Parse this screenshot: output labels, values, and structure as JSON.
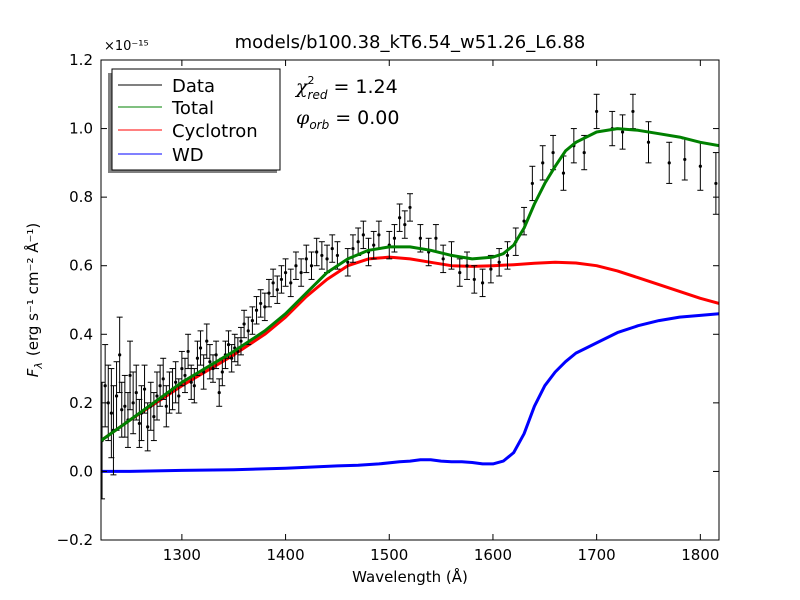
{
  "chart_data": {
    "type": "line",
    "title": "models/b100.38_kT6.54_w51.26_L6.88",
    "xlabel_text": "Wavelength (",
    "xlabel_unit": "Å",
    "xlabel_close": ")",
    "ylabel_symbol": "F",
    "ylabel_sub": "λ",
    "ylabel_units": "(erg s⁻¹ cm⁻² Å⁻¹)",
    "y_offset_label": "×10⁻¹⁵",
    "xlim": [
      1222,
      1818
    ],
    "ylim": [
      -0.2,
      1.2
    ],
    "grid": false,
    "legend_position": "top-left",
    "x_ticks": [
      1300,
      1400,
      1500,
      1600,
      1700,
      1800
    ],
    "x_tick_labels": [
      "1300",
      "1400",
      "1500",
      "1600",
      "1700",
      "1800"
    ],
    "y_ticks": [
      -0.2,
      0.0,
      0.2,
      0.4,
      0.6,
      0.8,
      1.0,
      1.2
    ],
    "y_tick_labels": [
      "−0.2",
      "0.0",
      "0.2",
      "0.4",
      "0.6",
      "0.8",
      "1.0",
      "1.2"
    ],
    "annotations": [
      {
        "symbol": "χ",
        "sup": "2",
        "sub": "red",
        "value": "= 1.24"
      },
      {
        "symbol": "φ",
        "sup": "",
        "sub": "orb",
        "value": "= 0.00"
      }
    ],
    "series": [
      {
        "name": "Data",
        "color": "#000000",
        "kind": "errorbar",
        "points": [
          [
            1223,
            0.09,
            0.17
          ],
          [
            1226,
            0.25,
            0.12
          ],
          [
            1229,
            0.2,
            0.11
          ],
          [
            1232,
            0.17,
            0.13
          ],
          [
            1234,
            0.12,
            0.13
          ],
          [
            1237,
            0.22,
            0.1
          ],
          [
            1240,
            0.34,
            0.11
          ],
          [
            1242,
            0.18,
            0.08
          ],
          [
            1245,
            0.19,
            0.09
          ],
          [
            1248,
            0.15,
            0.08
          ],
          [
            1250,
            0.28,
            0.1
          ],
          [
            1253,
            0.2,
            0.09
          ],
          [
            1256,
            0.23,
            0.08
          ],
          [
            1259,
            0.14,
            0.07
          ],
          [
            1261,
            0.17,
            0.08
          ],
          [
            1264,
            0.24,
            0.07
          ],
          [
            1267,
            0.13,
            0.07
          ],
          [
            1270,
            0.19,
            0.07
          ],
          [
            1273,
            0.16,
            0.07
          ],
          [
            1276,
            0.22,
            0.07
          ],
          [
            1279,
            0.25,
            0.06
          ],
          [
            1282,
            0.27,
            0.06
          ],
          [
            1285,
            0.19,
            0.06
          ],
          [
            1288,
            0.23,
            0.06
          ],
          [
            1291,
            0.24,
            0.06
          ],
          [
            1294,
            0.26,
            0.06
          ],
          [
            1297,
            0.22,
            0.05
          ],
          [
            1300,
            0.3,
            0.05
          ],
          [
            1303,
            0.28,
            0.05
          ],
          [
            1306,
            0.35,
            0.05
          ],
          [
            1309,
            0.26,
            0.05
          ],
          [
            1312,
            0.25,
            0.05
          ],
          [
            1315,
            0.33,
            0.05
          ],
          [
            1318,
            0.36,
            0.05
          ],
          [
            1321,
            0.29,
            0.05
          ],
          [
            1324,
            0.38,
            0.05
          ],
          [
            1327,
            0.32,
            0.05
          ],
          [
            1330,
            0.3,
            0.04
          ],
          [
            1333,
            0.34,
            0.04
          ],
          [
            1336,
            0.23,
            0.04
          ],
          [
            1339,
            0.29,
            0.04
          ],
          [
            1342,
            0.34,
            0.04
          ],
          [
            1345,
            0.37,
            0.04
          ],
          [
            1348,
            0.33,
            0.04
          ],
          [
            1351,
            0.36,
            0.04
          ],
          [
            1354,
            0.35,
            0.04
          ],
          [
            1357,
            0.38,
            0.04
          ],
          [
            1360,
            0.43,
            0.04
          ],
          [
            1364,
            0.41,
            0.04
          ],
          [
            1368,
            0.44,
            0.04
          ],
          [
            1372,
            0.47,
            0.04
          ],
          [
            1376,
            0.49,
            0.04
          ],
          [
            1380,
            0.48,
            0.04
          ],
          [
            1384,
            0.52,
            0.04
          ],
          [
            1388,
            0.55,
            0.04
          ],
          [
            1392,
            0.53,
            0.04
          ],
          [
            1396,
            0.56,
            0.04
          ],
          [
            1400,
            0.58,
            0.04
          ],
          [
            1405,
            0.55,
            0.04
          ],
          [
            1410,
            0.6,
            0.04
          ],
          [
            1415,
            0.58,
            0.04
          ],
          [
            1420,
            0.62,
            0.04
          ],
          [
            1425,
            0.6,
            0.04
          ],
          [
            1430,
            0.64,
            0.04
          ],
          [
            1435,
            0.63,
            0.04
          ],
          [
            1440,
            0.62,
            0.04
          ],
          [
            1445,
            0.65,
            0.04
          ],
          [
            1450,
            0.63,
            0.04
          ],
          [
            1460,
            0.61,
            0.04
          ],
          [
            1465,
            0.65,
            0.04
          ],
          [
            1470,
            0.67,
            0.04
          ],
          [
            1475,
            0.69,
            0.04
          ],
          [
            1480,
            0.64,
            0.04
          ],
          [
            1485,
            0.66,
            0.04
          ],
          [
            1490,
            0.69,
            0.04
          ],
          [
            1500,
            0.66,
            0.04
          ],
          [
            1505,
            0.68,
            0.04
          ],
          [
            1510,
            0.74,
            0.04
          ],
          [
            1515,
            0.72,
            0.04
          ],
          [
            1520,
            0.77,
            0.04
          ],
          [
            1530,
            0.68,
            0.04
          ],
          [
            1538,
            0.64,
            0.04
          ],
          [
            1545,
            0.68,
            0.04
          ],
          [
            1552,
            0.62,
            0.04
          ],
          [
            1560,
            0.63,
            0.04
          ],
          [
            1568,
            0.58,
            0.04
          ],
          [
            1575,
            0.6,
            0.04
          ],
          [
            1582,
            0.56,
            0.04
          ],
          [
            1590,
            0.55,
            0.04
          ],
          [
            1598,
            0.59,
            0.04
          ],
          [
            1606,
            0.61,
            0.04
          ],
          [
            1614,
            0.63,
            0.04
          ],
          [
            1622,
            0.67,
            0.04
          ],
          [
            1630,
            0.73,
            0.04
          ],
          [
            1638,
            0.84,
            0.05
          ],
          [
            1648,
            0.9,
            0.05
          ],
          [
            1658,
            0.93,
            0.05
          ],
          [
            1668,
            0.87,
            0.05
          ],
          [
            1678,
            0.95,
            0.05
          ],
          [
            1688,
            0.93,
            0.05
          ],
          [
            1700,
            1.05,
            0.05
          ],
          [
            1715,
            1.0,
            0.05
          ],
          [
            1725,
            0.99,
            0.05
          ],
          [
            1735,
            1.05,
            0.05
          ],
          [
            1750,
            0.96,
            0.06
          ],
          [
            1770,
            0.9,
            0.06
          ],
          [
            1785,
            0.91,
            0.06
          ],
          [
            1800,
            0.89,
            0.07
          ],
          [
            1815,
            0.84,
            0.09
          ]
        ]
      },
      {
        "name": "Total",
        "color": "#008000",
        "kind": "line",
        "x": [
          1222,
          1250,
          1300,
          1350,
          1380,
          1400,
          1420,
          1440,
          1460,
          1480,
          1500,
          1520,
          1540,
          1560,
          1580,
          1600,
          1610,
          1620,
          1630,
          1640,
          1650,
          1660,
          1670,
          1680,
          1700,
          1720,
          1740,
          1760,
          1780,
          1800,
          1818
        ],
        "y": [
          0.09,
          0.15,
          0.26,
          0.35,
          0.41,
          0.46,
          0.52,
          0.58,
          0.62,
          0.645,
          0.655,
          0.655,
          0.645,
          0.63,
          0.62,
          0.625,
          0.635,
          0.66,
          0.71,
          0.78,
          0.84,
          0.89,
          0.935,
          0.96,
          0.99,
          1.0,
          0.995,
          0.985,
          0.975,
          0.96,
          0.95
        ]
      },
      {
        "name": "Cyclotron",
        "color": "#ff0000",
        "kind": "line",
        "x": [
          1222,
          1250,
          1300,
          1350,
          1380,
          1400,
          1420,
          1440,
          1460,
          1480,
          1500,
          1520,
          1540,
          1560,
          1580,
          1600,
          1620,
          1640,
          1660,
          1680,
          1700,
          1720,
          1740,
          1760,
          1780,
          1800,
          1818
        ],
        "y": [
          0.09,
          0.15,
          0.25,
          0.34,
          0.4,
          0.45,
          0.51,
          0.56,
          0.6,
          0.62,
          0.625,
          0.62,
          0.61,
          0.6,
          0.598,
          0.6,
          0.603,
          0.607,
          0.61,
          0.608,
          0.6,
          0.585,
          0.565,
          0.545,
          0.525,
          0.505,
          0.49
        ]
      },
      {
        "name": "WD",
        "color": "#0000ff",
        "kind": "line",
        "x": [
          1222,
          1250,
          1300,
          1350,
          1400,
          1450,
          1470,
          1490,
          1510,
          1520,
          1530,
          1540,
          1550,
          1560,
          1570,
          1580,
          1590,
          1600,
          1610,
          1620,
          1630,
          1640,
          1650,
          1660,
          1670,
          1680,
          1690,
          1700,
          1720,
          1740,
          1760,
          1780,
          1800,
          1818
        ],
        "y": [
          0.0,
          0.0,
          0.003,
          0.005,
          0.009,
          0.016,
          0.018,
          0.022,
          0.028,
          0.03,
          0.034,
          0.034,
          0.03,
          0.028,
          0.028,
          0.026,
          0.022,
          0.022,
          0.03,
          0.055,
          0.11,
          0.19,
          0.25,
          0.29,
          0.32,
          0.345,
          0.36,
          0.375,
          0.405,
          0.425,
          0.44,
          0.45,
          0.455,
          0.46
        ]
      }
    ]
  }
}
